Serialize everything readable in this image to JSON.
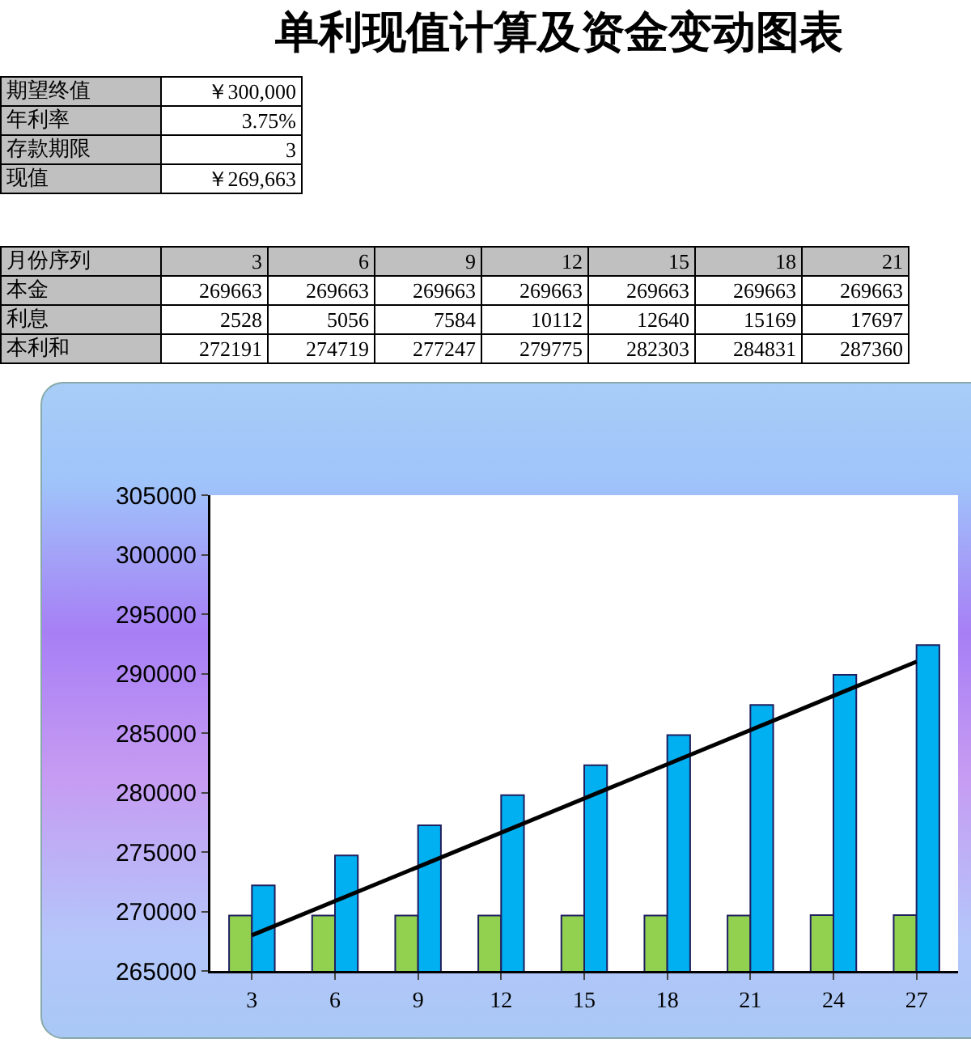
{
  "chart_data": {
    "type": "bar",
    "title": "单利现值计算及资金变动图表",
    "categories": [
      "3",
      "6",
      "9",
      "12",
      "15",
      "18",
      "21",
      "24",
      "27"
    ],
    "series": [
      {
        "color": "#92d050",
        "values": [
          269663,
          269663,
          269663,
          269663,
          269663,
          269663,
          269663,
          269700,
          269700
        ]
      },
      {
        "color": "#00b0f0",
        "values": [
          272191,
          274719,
          277247,
          279775,
          282303,
          284831,
          287360,
          289900,
          292400
        ]
      },
      {
        "type": "line",
        "color": "#000000",
        "x": [
          "3",
          "27"
        ],
        "values": [
          268000,
          291000
        ]
      }
    ],
    "ylim": [
      265000,
      305000
    ],
    "yticks": [
      265000,
      270000,
      275000,
      280000,
      285000,
      290000,
      295000,
      300000,
      305000
    ],
    "grid": false,
    "annotations": [
      "期望终值",
      "￥300,000",
      "年利率",
      "3.75%",
      "存款期限",
      "3",
      "现值",
      "￥269,663",
      "月份序列",
      "本金",
      "利息",
      "本利和",
      "269663",
      "269663",
      "269663",
      "269663",
      "269663",
      "269663",
      "269663",
      "2528",
      "5056",
      "7584",
      "10112",
      "12640",
      "15169",
      "17697",
      "272191",
      "274719",
      "277247",
      "279775",
      "282303",
      "284831",
      "287360"
    ]
  }
}
